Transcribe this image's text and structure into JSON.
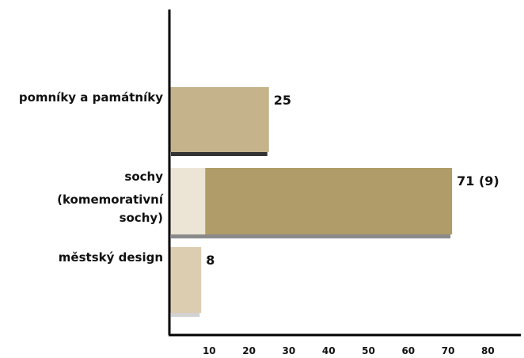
{
  "chart_data": {
    "type": "bar",
    "orientation": "horizontal",
    "title": "",
    "xlabel": "",
    "ylabel": "",
    "xlim": [
      0,
      85
    ],
    "x_ticks": [
      10,
      20,
      30,
      40,
      50,
      60,
      70,
      80
    ],
    "grid": false,
    "legend": "none",
    "categories": [
      {
        "label_lines": [
          "pomníky a památníky"
        ],
        "value": 25,
        "highlighted": null,
        "value_label": "25",
        "color": "#c5b38c",
        "shadow_color": "#333333"
      },
      {
        "label_lines": [
          "sochy",
          "(komemorativní",
          "sochy)"
        ],
        "value": 71,
        "highlighted": 9,
        "value_label": "71 (9)",
        "color": "#b09c68",
        "highlight_color": "#ece5d6",
        "shadow_color": "#8a8a8a"
      },
      {
        "label_lines": [
          "městský design"
        ],
        "value": 8,
        "highlighted": null,
        "value_label": "8",
        "color": "#dccdb0",
        "shadow_color": "#d2d2d2"
      }
    ]
  }
}
